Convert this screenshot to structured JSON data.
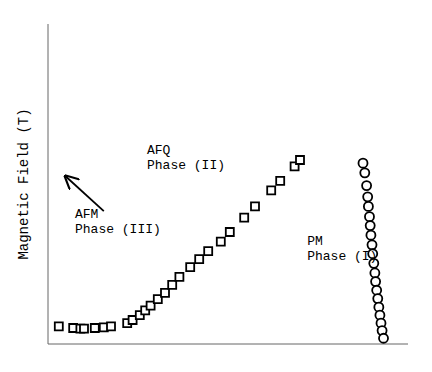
{
  "chart_data": {
    "type": "scatter",
    "ylabel": "Magnetic Field (T)",
    "xlim": [
      0,
      1
    ],
    "ylim": [
      0,
      1
    ],
    "xticks": [
      0,
      0.16666666666666666,
      0.3333333333333333,
      0.5,
      0.6666666666666666,
      0.8333333333333334,
      1
    ],
    "yticks": [
      0,
      0.16666666666666666,
      0.3333333333333333,
      0.5,
      0.6666666666666666,
      0.8333333333333334,
      1
    ],
    "tick_labels": false,
    "grid": false,
    "series": [
      {
        "marker": "square",
        "x": [
          0.03,
          0.07,
          0.09,
          0.1,
          0.13,
          0.155,
          0.175,
          0.22,
          0.235,
          0.255,
          0.27,
          0.285,
          0.305,
          0.325,
          0.345,
          0.365,
          0.395,
          0.42,
          0.445,
          0.48,
          0.505,
          0.545,
          0.575,
          0.62,
          0.645,
          0.685,
          0.7
        ],
        "values": [
          0.055,
          0.05,
          0.048,
          0.048,
          0.05,
          0.052,
          0.055,
          0.065,
          0.075,
          0.09,
          0.105,
          0.12,
          0.14,
          0.16,
          0.185,
          0.21,
          0.24,
          0.265,
          0.29,
          0.32,
          0.35,
          0.395,
          0.43,
          0.48,
          0.51,
          0.555,
          0.575
        ]
      },
      {
        "marker": "circle",
        "x": [
          0.875,
          0.88,
          0.885,
          0.888,
          0.89,
          0.893,
          0.895,
          0.897,
          0.9,
          0.902,
          0.905,
          0.908,
          0.91,
          0.913,
          0.916,
          0.919,
          0.922,
          0.925,
          0.928,
          0.932
        ],
        "values": [
          0.565,
          0.535,
          0.495,
          0.46,
          0.43,
          0.398,
          0.37,
          0.34,
          0.31,
          0.282,
          0.252,
          0.222,
          0.195,
          0.168,
          0.142,
          0.115,
          0.09,
          0.065,
          0.042,
          0.018
        ]
      }
    ],
    "annotations": [
      {
        "text": "AFQ\nPhase (II)",
        "x": 0.275,
        "y": 0.58
      },
      {
        "text": "AFM\nPhase (III)",
        "x": 0.075,
        "y": 0.38,
        "arrow": {
          "x": [
            0.155,
            0.048
          ],
          "y": [
            0.415,
            0.525
          ]
        }
      },
      {
        "text": "PM\nPhase (I)",
        "x": 0.72,
        "y": 0.295
      }
    ]
  }
}
